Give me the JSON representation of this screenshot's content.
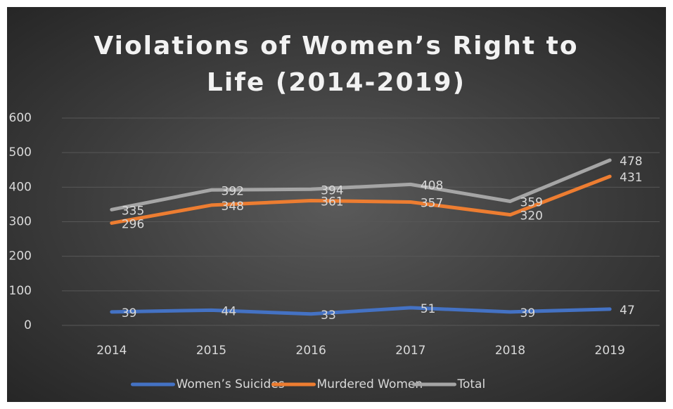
{
  "chart_data": {
    "type": "line",
    "title": "Violations of Women’s Right to Life (2014-2019)",
    "categories": [
      "2014",
      "2015",
      "2016",
      "2017",
      "2018",
      "2019"
    ],
    "series": [
      {
        "name": "Women’s Suicides",
        "color": "#4472c4",
        "values": [
          39,
          44,
          33,
          51,
          39,
          47
        ]
      },
      {
        "name": "Murdered Women",
        "color": "#ed7d31",
        "values": [
          296,
          348,
          361,
          357,
          320,
          431
        ]
      },
      {
        "name": "Total",
        "color": "#a5a5a5",
        "values": [
          335,
          392,
          394,
          408,
          359,
          478
        ]
      }
    ],
    "ylim": [
      0,
      600
    ],
    "yticks": [
      0,
      100,
      200,
      300,
      400,
      500,
      600
    ],
    "grid": true,
    "legend": "bottom"
  }
}
